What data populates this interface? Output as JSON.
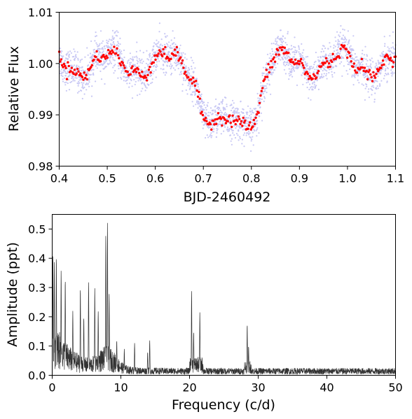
{
  "chart_data": [
    {
      "type": "scatter",
      "xlabel": "BJD-2460492",
      "ylabel": "Relative Flux",
      "xlim": [
        0.4,
        1.1
      ],
      "ylim": [
        0.98,
        1.01
      ],
      "xticks": [
        0.4,
        0.5,
        0.6,
        0.7,
        0.8,
        0.9,
        1.0,
        1.1
      ],
      "xtick_labels": [
        "0.4",
        "0.5",
        "0.6",
        "0.7",
        "0.8",
        "0.9",
        "1.0",
        "1.1"
      ],
      "yticks": [
        0.98,
        0.99,
        1.0,
        1.01
      ],
      "ytick_labels": [
        "0.98",
        "0.99",
        "1.00",
        "1.01"
      ],
      "grid": false,
      "series": [
        {
          "color": "#c8c8f4",
          "marker_size": "small",
          "description_of_pattern": "dense scatter of raw points",
          "x_range": [
            0.4,
            1.1
          ],
          "transit_ingress": 0.69,
          "transit_egress": 0.82,
          "out_of_transit_level": 1.0,
          "in_transit_level": 0.9885,
          "scatter_sd": 0.0018
        },
        {
          "color": "#ff0000",
          "marker_size": "medium",
          "x_range": [
            0.4,
            1.1
          ],
          "transit_ingress": 0.69,
          "transit_egress": 0.82,
          "out_of_transit_level": 1.0,
          "in_transit_level": 0.9885,
          "scatter_sd": 0.0006
        }
      ],
      "oscillation": {
        "period": 0.121,
        "amplitude": 0.0022
      }
    },
    {
      "type": "line",
      "xlabel": "Frequency (c/d)",
      "ylabel": "Amplitude (ppt)",
      "xlim": [
        0,
        50
      ],
      "ylim": [
        0,
        0.55
      ],
      "xticks": [
        0,
        10,
        20,
        30,
        40,
        50
      ],
      "xtick_labels": [
        "0",
        "10",
        "20",
        "30",
        "40",
        "50"
      ],
      "yticks": [
        0.0,
        0.1,
        0.2,
        0.3,
        0.4,
        0.5
      ],
      "ytick_labels": [
        "0.0",
        "0.1",
        "0.2",
        "0.3",
        "0.4",
        "0.5"
      ],
      "grid": false,
      "line_color": "#333333",
      "peaks": [
        {
          "freq": 0.1,
          "amp": 0.42
        },
        {
          "freq": 0.3,
          "amp": 0.39
        },
        {
          "freq": 0.6,
          "amp": 0.41
        },
        {
          "freq": 1.3,
          "amp": 0.36
        },
        {
          "freq": 1.9,
          "amp": 0.33
        },
        {
          "freq": 3.0,
          "amp": 0.22
        },
        {
          "freq": 4.1,
          "amp": 0.3
        },
        {
          "freq": 4.6,
          "amp": 0.2
        },
        {
          "freq": 5.3,
          "amp": 0.32
        },
        {
          "freq": 6.2,
          "amp": 0.3
        },
        {
          "freq": 6.7,
          "amp": 0.22
        },
        {
          "freq": 7.8,
          "amp": 0.48
        },
        {
          "freq": 8.05,
          "amp": 0.525
        },
        {
          "freq": 8.3,
          "amp": 0.28
        },
        {
          "freq": 9.4,
          "amp": 0.12
        },
        {
          "freq": 10.5,
          "amp": 0.09
        },
        {
          "freq": 12.0,
          "amp": 0.11
        },
        {
          "freq": 13.9,
          "amp": 0.08
        },
        {
          "freq": 14.2,
          "amp": 0.12
        },
        {
          "freq": 20.3,
          "amp": 0.29
        },
        {
          "freq": 20.6,
          "amp": 0.15
        },
        {
          "freq": 21.5,
          "amp": 0.215
        },
        {
          "freq": 28.4,
          "amp": 0.175
        },
        {
          "freq": 28.6,
          "amp": 0.1
        }
      ]
    }
  ]
}
